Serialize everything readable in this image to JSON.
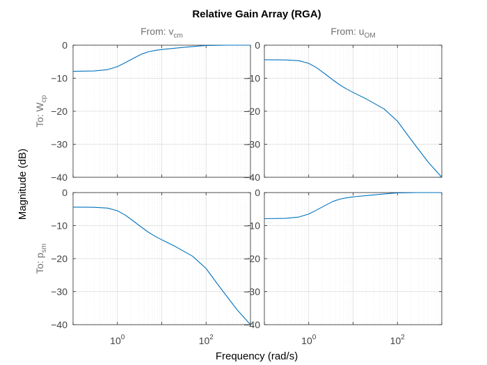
{
  "chart_data": {
    "type": "line",
    "title": "Relative Gain Array (RGA)",
    "xlabel": "Frequency  (rad/s)",
    "ylabel": "Magnitude (dB)",
    "xscale": "log",
    "xlim": [
      0.1,
      1000
    ],
    "ylim": [
      -40,
      0
    ],
    "grid": true,
    "line_color": "#0072bd",
    "column_titles": [
      {
        "prefix": "From: ",
        "var": "v",
        "sub": "cm"
      },
      {
        "prefix": "From: ",
        "var": "u",
        "sub": "OM"
      }
    ],
    "row_titles": [
      {
        "prefix": "To: ",
        "var": "W",
        "sub": "cp"
      },
      {
        "prefix": "To: ",
        "var": "p",
        "sub": "sm"
      }
    ],
    "yticks": [
      0,
      -10,
      -20,
      -30,
      -40
    ],
    "yticklabels": [
      "0",
      "−10",
      "−20",
      "−30",
      "−40"
    ],
    "xticks": [
      {
        "base": "10",
        "exp": "0",
        "value": 1
      },
      {
        "base": "10",
        "exp": "2",
        "value": 100
      }
    ],
    "panels": [
      {
        "row": 0,
        "col": 0,
        "name": "From v_cm To W_cp",
        "x": [
          0.1,
          0.3,
          0.6,
          1,
          1.5,
          2.5,
          3.5,
          5,
          7,
          10,
          20,
          50,
          100,
          300,
          1000
        ],
        "y": [
          -7.9,
          -7.8,
          -7.4,
          -6.5,
          -5.3,
          -3.7,
          -2.7,
          -2.0,
          -1.6,
          -1.3,
          -0.9,
          -0.4,
          -0.1,
          0.0,
          0.0
        ]
      },
      {
        "row": 0,
        "col": 1,
        "name": "From u_OM To W_cp",
        "x": [
          0.1,
          0.3,
          0.6,
          1,
          1.5,
          2.5,
          3.5,
          5,
          7,
          10,
          20,
          50,
          100,
          200,
          500,
          1000
        ],
        "y": [
          -4.4,
          -4.45,
          -4.7,
          -5.5,
          -6.8,
          -9.0,
          -10.5,
          -12.0,
          -13.2,
          -14.3,
          -16.3,
          -19.3,
          -23.0,
          -28.5,
          -35.5,
          -40.0
        ]
      },
      {
        "row": 1,
        "col": 0,
        "name": "From v_cm To p_sm",
        "x": [
          0.1,
          0.3,
          0.6,
          1,
          1.5,
          2.5,
          3.5,
          5,
          7,
          10,
          20,
          50,
          100,
          200,
          500,
          1000
        ],
        "y": [
          -4.4,
          -4.45,
          -4.7,
          -5.5,
          -6.8,
          -9.0,
          -10.5,
          -12.0,
          -13.2,
          -14.3,
          -16.3,
          -19.3,
          -23.0,
          -28.5,
          -35.5,
          -40.0
        ]
      },
      {
        "row": 1,
        "col": 1,
        "name": "From u_OM To p_sm",
        "x": [
          0.1,
          0.3,
          0.6,
          1,
          1.5,
          2.5,
          3.5,
          5,
          7,
          10,
          20,
          50,
          100,
          300,
          1000
        ],
        "y": [
          -7.9,
          -7.8,
          -7.4,
          -6.5,
          -5.3,
          -3.7,
          -2.7,
          -2.0,
          -1.6,
          -1.3,
          -0.9,
          -0.4,
          -0.1,
          0.0,
          0.0
        ]
      }
    ]
  }
}
